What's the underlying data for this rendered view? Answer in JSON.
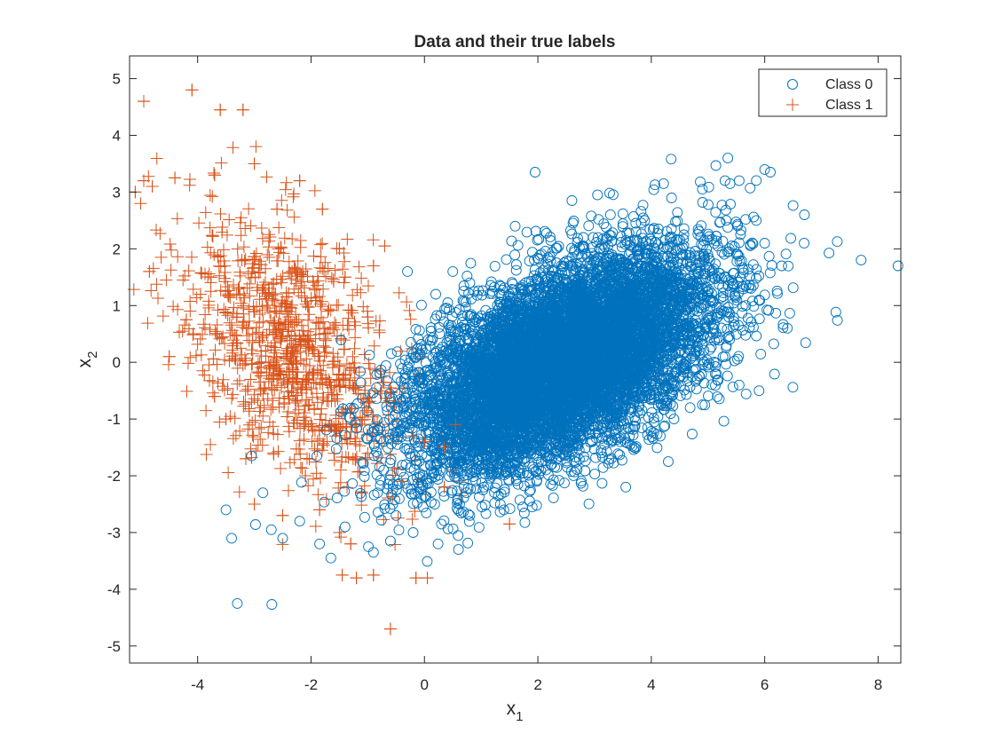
{
  "chart_data": {
    "type": "scatter",
    "title": "Data and their true labels",
    "xlabel": {
      "base": "x",
      "sub": "1"
    },
    "ylabel": {
      "base": "x",
      "sub": "2"
    },
    "xlim": [
      -5.2,
      8.4
    ],
    "ylim": [
      -5.3,
      5.4
    ],
    "xticks": [
      -4,
      -2,
      0,
      2,
      4,
      6,
      8
    ],
    "yticks": [
      -5,
      -4,
      -3,
      -2,
      -1,
      0,
      1,
      2,
      3,
      4,
      5
    ],
    "grid": false,
    "legend_position": "top-right",
    "series": [
      {
        "name": "Class 0",
        "marker": "circle",
        "color": "#0072BD",
        "approx_count": 9000,
        "cluster": {
          "mean": [
            2.4,
            0.0
          ],
          "sd": [
            1.3,
            0.95
          ],
          "correlation": 0.55
        },
        "points": [
          [
            7.7,
            1.8
          ],
          [
            8.35,
            1.7
          ],
          [
            5.35,
            3.6
          ],
          [
            6.0,
            3.4
          ],
          [
            6.1,
            3.35
          ],
          [
            1.95,
            3.35
          ],
          [
            6.7,
            2.6
          ],
          [
            6.4,
            0.6
          ],
          [
            6.3,
            1.7
          ],
          [
            5.9,
            -0.5
          ],
          [
            4.3,
            -1.75
          ],
          [
            3.55,
            -2.2
          ],
          [
            -3.3,
            -4.25
          ],
          [
            -3.4,
            -3.1
          ],
          [
            -3.5,
            -2.6
          ],
          [
            -3.05,
            -1.65
          ],
          [
            -2.85,
            -2.3
          ],
          [
            -2.7,
            -2.95
          ],
          [
            -2.5,
            -3.1
          ],
          [
            -2.2,
            -2.8
          ],
          [
            -1.85,
            -3.2
          ],
          [
            -1.65,
            -3.45
          ],
          [
            -1.4,
            -2.9
          ],
          [
            -0.9,
            -3.35
          ],
          [
            -0.6,
            -3.15
          ],
          [
            -0.5,
            -2.7
          ],
          [
            -0.2,
            -3.0
          ],
          [
            0.3,
            -2.85
          ],
          [
            0.6,
            -3.3
          ],
          [
            0.8,
            -2.7
          ],
          [
            1.4,
            -2.6
          ],
          [
            1.9,
            -2.55
          ],
          [
            0.5,
            1.6
          ],
          [
            0.8,
            1.4
          ],
          [
            0.2,
            1.2
          ],
          [
            -0.3,
            1.6
          ],
          [
            1.6,
            2.4
          ],
          [
            2.6,
            2.85
          ],
          [
            3.05,
            2.95
          ],
          [
            4.9,
            3.05
          ],
          [
            5.3,
            3.2
          ],
          [
            5.55,
            3.2
          ],
          [
            5.85,
            2.5
          ],
          [
            6.0,
            2.1
          ],
          [
            5.9,
            1.1
          ],
          [
            5.55,
            -0.4
          ],
          [
            5.3,
            0.1
          ],
          [
            4.9,
            -0.75
          ],
          [
            4.4,
            -1.0
          ],
          [
            3.7,
            -1.5
          ]
        ]
      },
      {
        "name": "Class 1",
        "marker": "plus",
        "color": "#D95319",
        "approx_count": 1000,
        "cluster": {
          "mean": [
            -2.3,
            0.2
          ],
          "sd": [
            1.0,
            1.2
          ],
          "correlation": -0.45
        },
        "points": [
          [
            -4.95,
            4.6
          ],
          [
            -4.1,
            4.8
          ],
          [
            -3.6,
            4.45
          ],
          [
            -3.2,
            4.45
          ],
          [
            -4.95,
            3.2
          ],
          [
            -5.1,
            3.0
          ],
          [
            -4.8,
            3.1
          ],
          [
            -4.4,
            3.25
          ],
          [
            -3.7,
            3.3
          ],
          [
            -3.0,
            3.5
          ],
          [
            -4.85,
            1.6
          ],
          [
            -4.5,
            0.1
          ],
          [
            -3.7,
            -0.6
          ],
          [
            -3.5,
            -1.0
          ],
          [
            -3.15,
            -1.7
          ],
          [
            -3.0,
            -2.5
          ],
          [
            -2.5,
            -2.7
          ],
          [
            -2.1,
            -2.0
          ],
          [
            -1.85,
            -2.6
          ],
          [
            -1.5,
            -3.0
          ],
          [
            -1.3,
            -3.2
          ],
          [
            -1.45,
            -3.75
          ],
          [
            -1.2,
            -3.8
          ],
          [
            -0.9,
            -3.75
          ],
          [
            -0.6,
            -4.7
          ],
          [
            -0.15,
            -3.8
          ],
          [
            0.05,
            -3.8
          ],
          [
            -0.4,
            -2.1
          ],
          [
            -0.2,
            -1.3
          ],
          [
            0.0,
            -1.4
          ],
          [
            0.35,
            -1.5
          ],
          [
            0.55,
            -1.1
          ],
          [
            1.5,
            -2.85
          ],
          [
            0.35,
            -2.2
          ],
          [
            -0.6,
            -0.45
          ],
          [
            -1.0,
            0.8
          ],
          [
            -1.4,
            1.5
          ],
          [
            -1.8,
            2.7
          ],
          [
            -2.2,
            3.2
          ],
          [
            -2.6,
            2.7
          ],
          [
            -0.7,
            2.05
          ],
          [
            -0.9,
            1.7
          ],
          [
            -1.5,
            2.0
          ],
          [
            -4.2,
            0.75
          ],
          [
            -3.95,
            1.2
          ]
        ]
      }
    ]
  }
}
